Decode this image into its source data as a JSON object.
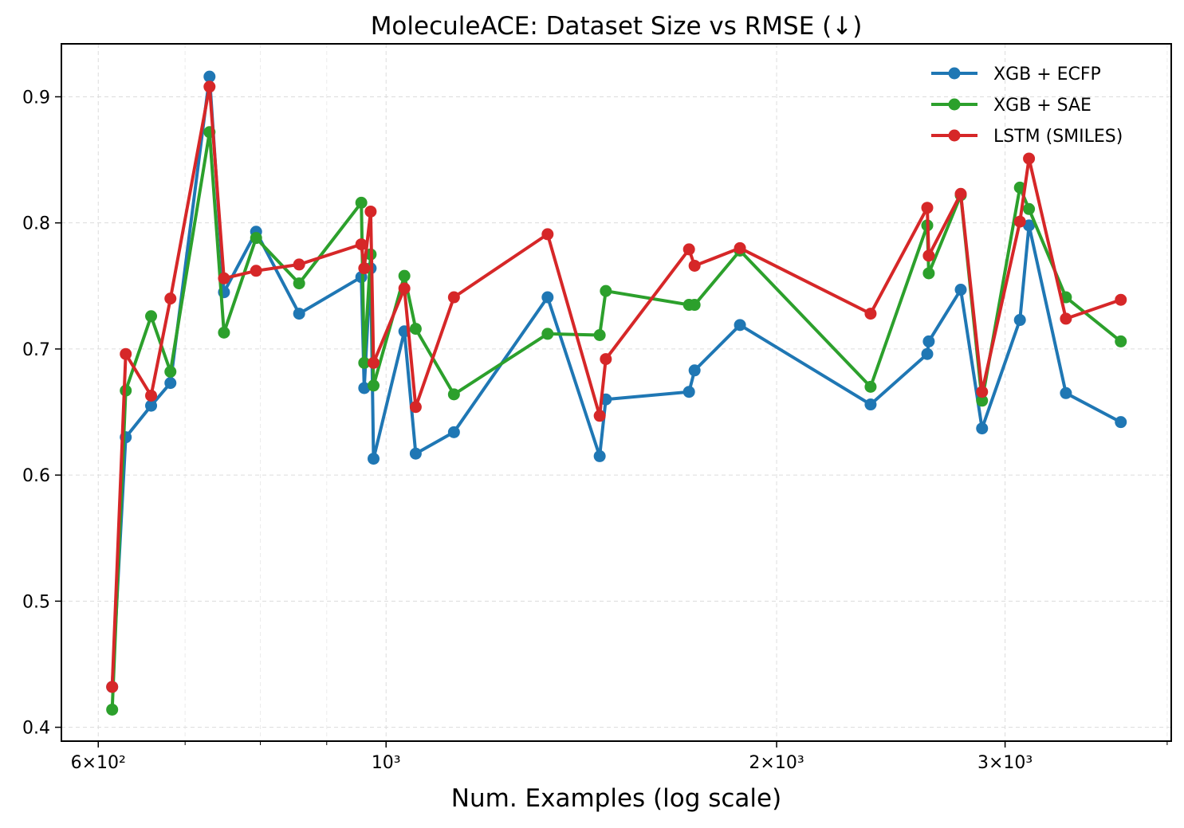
{
  "chart_data": {
    "type": "line",
    "title": "MoleculeACE: Dataset Size vs RMSE (↓)",
    "xlabel": "Num. Examples (log scale)",
    "ylabel": "",
    "xscale": "log",
    "xlim": [
      562,
      4029
    ],
    "ylim": [
      0.389,
      0.942
    ],
    "grid": true,
    "legend_position": "top-right",
    "x_ticks_major": [
      {
        "value": 600,
        "label": "6×10²"
      },
      {
        "value": 1000,
        "label": "10³"
      },
      {
        "value": 2000,
        "label": "2×10³"
      },
      {
        "value": 3000,
        "label": "3×10³"
      }
    ],
    "x_ticks_minor": [
      700,
      800,
      900,
      4000
    ],
    "y_ticks": [
      {
        "value": 0.4,
        "label": "0.4"
      },
      {
        "value": 0.5,
        "label": "0.5"
      },
      {
        "value": 0.6,
        "label": "0.6"
      },
      {
        "value": 0.7,
        "label": "0.7"
      },
      {
        "value": 0.8,
        "label": "0.8"
      },
      {
        "value": 0.9,
        "label": "0.9"
      }
    ],
    "x": [
      615,
      630,
      659,
      682,
      731,
      750,
      794,
      857,
      957,
      962,
      973,
      978,
      1033,
      1054,
      1128,
      1332,
      1461,
      1477,
      1712,
      1729,
      1874,
      2363,
      2613,
      2620,
      2773,
      2880,
      3080,
      3130,
      3342,
      3684
    ],
    "series": [
      {
        "name": "XGB + ECFP",
        "color": "#1f77b4",
        "values": [
          0.432,
          0.63,
          0.655,
          0.673,
          0.916,
          0.745,
          0.793,
          0.728,
          0.757,
          0.669,
          0.764,
          0.613,
          0.714,
          0.617,
          0.634,
          0.741,
          0.615,
          0.66,
          0.666,
          0.683,
          0.719,
          0.656,
          0.696,
          0.706,
          0.747,
          0.637,
          0.723,
          0.798,
          0.665,
          0.642
        ]
      },
      {
        "name": "XGB + SAE",
        "color": "#2ca02c",
        "values": [
          0.414,
          0.667,
          0.726,
          0.682,
          0.872,
          0.713,
          0.788,
          0.752,
          0.816,
          0.689,
          0.775,
          0.671,
          0.758,
          0.716,
          0.664,
          0.712,
          0.711,
          0.746,
          0.735,
          0.735,
          0.778,
          0.67,
          0.798,
          0.76,
          0.822,
          0.659,
          0.828,
          0.811,
          0.741,
          0.706
        ]
      },
      {
        "name": "LSTM (SMILES)",
        "color": "#d62728",
        "values": [
          0.432,
          0.696,
          0.663,
          0.74,
          0.908,
          0.756,
          0.762,
          0.767,
          0.783,
          0.764,
          0.809,
          0.689,
          0.748,
          0.654,
          0.741,
          0.791,
          0.647,
          0.692,
          0.779,
          0.766,
          0.78,
          0.728,
          0.812,
          0.774,
          0.823,
          0.666,
          0.801,
          0.851,
          0.724,
          0.739
        ]
      }
    ]
  }
}
